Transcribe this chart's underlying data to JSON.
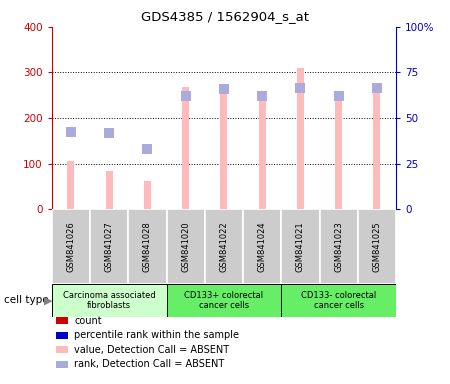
{
  "title": "GDS4385 / 1562904_s_at",
  "samples": [
    "GSM841026",
    "GSM841027",
    "GSM841028",
    "GSM841020",
    "GSM841022",
    "GSM841024",
    "GSM841021",
    "GSM841023",
    "GSM841025"
  ],
  "groups": [
    {
      "label": "Carcinoma associated\nfibroblasts",
      "start": 0,
      "end": 3,
      "color": "#ccffcc"
    },
    {
      "label": "CD133+ colorectal\ncancer cells",
      "start": 3,
      "end": 6,
      "color": "#66ee66"
    },
    {
      "label": "CD133- colorectal\ncancer cells",
      "start": 6,
      "end": 9,
      "color": "#66ee66"
    }
  ],
  "values_absent": [
    105,
    85,
    63,
    268,
    265,
    250,
    310,
    248,
    270
  ],
  "ranks_absent_left": [
    170,
    168,
    133,
    248,
    263,
    248,
    265,
    248,
    265
  ],
  "left_ylim": [
    0,
    400
  ],
  "right_ylim": [
    0,
    100
  ],
  "left_yticks": [
    0,
    100,
    200,
    300,
    400
  ],
  "right_yticks": [
    0,
    25,
    50,
    75,
    100
  ],
  "right_yticklabels": [
    "0",
    "25",
    "50",
    "75",
    "100%"
  ],
  "grid_values": [
    100,
    200,
    300
  ],
  "bar_color_absent": "#ffbbbb",
  "rank_color_absent": "#aaaadd",
  "left_tick_color": "#cc0000",
  "right_tick_color": "#0000cc",
  "sample_bg_color": "#cccccc",
  "bar_width": 0.18,
  "marker_size": 60,
  "legend_items": [
    {
      "color": "#cc0000",
      "label": "count"
    },
    {
      "color": "#0000cc",
      "label": "percentile rank within the sample"
    },
    {
      "color": "#ffbbbb",
      "label": "value, Detection Call = ABSENT"
    },
    {
      "color": "#aaaadd",
      "label": "rank, Detection Call = ABSENT"
    }
  ]
}
